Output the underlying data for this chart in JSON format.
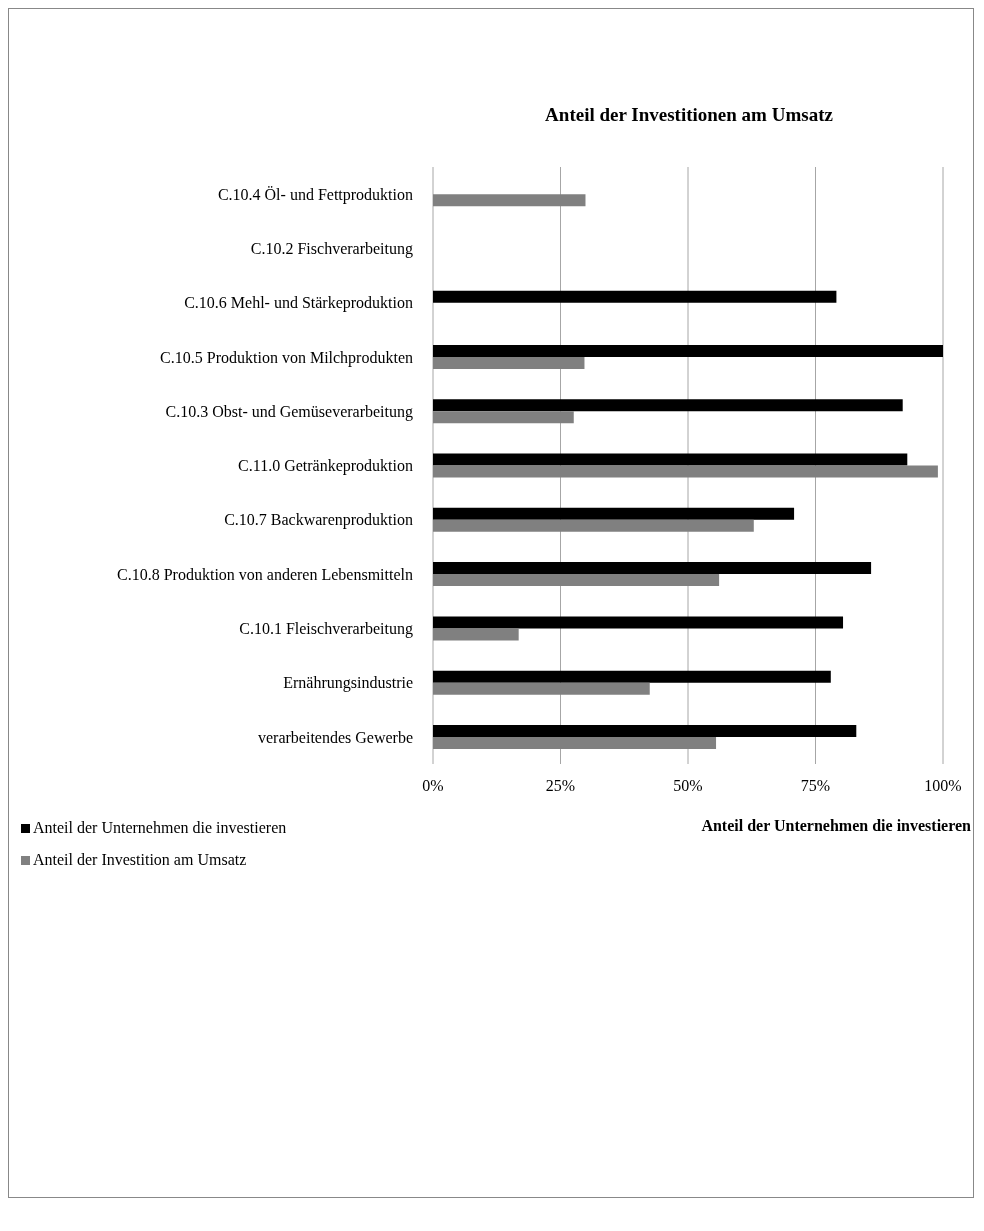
{
  "chart_data": {
    "type": "bar",
    "orientation": "horizontal",
    "title": "Anteil der Investitionen am Umsatz",
    "xlabel": "Anteil der Unternehmen die investieren",
    "categories": [
      "C.10.4 Öl- und Fettproduktion",
      "C.10.2 Fischverarbeitung",
      "C.10.6 Mehl- und Stärkeproduktion",
      "C.10.5 Produktion von Milchprodukten",
      "C.10.3 Obst- und Gemüseverarbeitung",
      "C.11.0 Getränkeproduktion",
      "C.10.7 Backwarenproduktion",
      "C.10.8 Produktion von anderen Lebensmitteln",
      "C.10.1 Fleischverarbeitung",
      "Ernährungsindustrie",
      "verarbeitendes Gewerbe"
    ],
    "series": [
      {
        "name": "Anteil der Unternehmen die investieren",
        "color": "#000000",
        "values": [
          null,
          null,
          79.1,
          100,
          92.1,
          93,
          70.8,
          85.9,
          80.4,
          78,
          83
        ]
      },
      {
        "name": "Anteil der Investition am Umsatz",
        "color": "#808080",
        "values": [
          29.9,
          null,
          null,
          29.7,
          27.6,
          99,
          62.9,
          56.1,
          16.8,
          42.5,
          55.5
        ]
      }
    ],
    "xlim": [
      0,
      100
    ],
    "xticks": [
      {
        "value": 0,
        "label": "0%"
      },
      {
        "value": 25,
        "label": "25%"
      },
      {
        "value": 50,
        "label": "50%"
      },
      {
        "value": 75,
        "label": "75%"
      },
      {
        "value": 100,
        "label": "100%"
      }
    ],
    "grid": "x",
    "legend": "bottom left"
  }
}
